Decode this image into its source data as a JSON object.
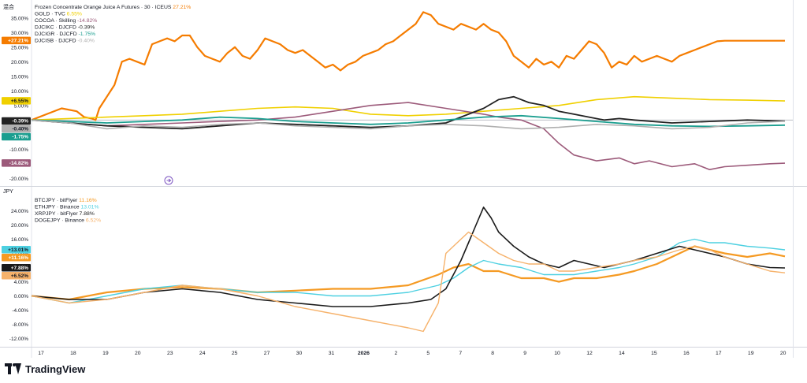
{
  "panel_label": "混合",
  "footer": {
    "brand": "TradingView"
  },
  "chart_data": [
    {
      "type": "line",
      "title": "Frozen Concentrate Orange Juice A Futures · 30 · ICEUS",
      "ylim": [
        -21,
        39
      ],
      "yticks": [
        35,
        30,
        25,
        20,
        15,
        10,
        5,
        0,
        -5,
        -10,
        -15,
        -20
      ],
      "ytick_labels": [
        "35.00%",
        "30.00%",
        "25.00%",
        "20.00%",
        "15.00%",
        "10.00%",
        "5.00%",
        "0.00%",
        "-5.00%",
        "-10.00%",
        "-15.00%",
        "-20.00%"
      ],
      "grid": false,
      "legend_position": "top-left",
      "series": [
        {
          "name": "Frozen Concentrate Orange Juice A Futures · 30 · ICEUS",
          "value_label": "27.21%",
          "badge": "+27.21%",
          "color": "#f57c00",
          "width": 2.2,
          "x": [
            0,
            2,
            4,
            6,
            7,
            8,
            8.5,
            9,
            10,
            11,
            12,
            13,
            14,
            15,
            16,
            17,
            18,
            19,
            20,
            21,
            22,
            23,
            24,
            25,
            26,
            27,
            28,
            29,
            30,
            31,
            32,
            33,
            34,
            35,
            36,
            37,
            38,
            39,
            40,
            41,
            42,
            43,
            44,
            45,
            46,
            47,
            48,
            49,
            50,
            51,
            52,
            53,
            54,
            55,
            56,
            57,
            58,
            59,
            60,
            61,
            62,
            63,
            64,
            65,
            66,
            67,
            68,
            69,
            70,
            71,
            72,
            73,
            74,
            75,
            76,
            77,
            78,
            79,
            80,
            81,
            82,
            83,
            84,
            85,
            86,
            87,
            88,
            89,
            90,
            91,
            92,
            93,
            94,
            95,
            96,
            97,
            98,
            99,
            100
          ],
          "y": [
            0,
            2,
            4,
            3,
            1,
            0.5,
            0,
            4,
            8,
            12,
            20,
            21,
            20,
            19,
            26,
            27,
            28,
            27,
            29,
            29,
            25,
            22,
            21,
            20,
            23,
            25,
            22,
            21,
            24,
            28,
            27,
            26,
            24,
            23,
            24,
            22,
            20,
            18,
            19,
            17,
            19,
            20,
            22,
            23,
            24,
            26,
            27,
            29,
            31,
            33,
            37,
            36,
            33,
            32,
            31,
            33,
            32,
            31,
            33,
            31,
            30,
            27,
            22,
            20,
            18,
            21,
            19,
            20,
            18,
            22,
            21,
            24,
            27,
            26,
            23,
            18,
            20,
            19,
            22,
            20,
            21,
            22,
            21,
            20,
            22,
            23,
            24,
            25,
            26,
            27,
            27.2,
            27.2,
            27.2,
            27.2,
            27.2,
            27.2,
            27.2,
            27.2,
            27.2
          ]
        },
        {
          "name": "GOLD · TVC",
          "value_label": "6.55%",
          "badge": "+6.55%",
          "color": "#f0d000",
          "width": 1.6,
          "x": [
            0,
            5,
            10,
            15,
            20,
            25,
            30,
            35,
            40,
            45,
            50,
            55,
            60,
            65,
            70,
            75,
            80,
            85,
            90,
            95,
            100
          ],
          "y": [
            0,
            0.5,
            1,
            1.5,
            2,
            3,
            4,
            4.5,
            4,
            2,
            1.5,
            2,
            3,
            4,
            5,
            7,
            8,
            7.5,
            7,
            6.8,
            6.55
          ]
        },
        {
          "name": "COCOA · Skilling",
          "value_label": "-14.82%",
          "badge": "-14.82%",
          "color": "#9c5a7a",
          "width": 1.6,
          "x": [
            0,
            5,
            10,
            15,
            20,
            25,
            30,
            35,
            40,
            45,
            50,
            55,
            60,
            62,
            65,
            68,
            70,
            72,
            75,
            78,
            80,
            82,
            85,
            88,
            90,
            92,
            95,
            98,
            100
          ],
          "y": [
            0,
            -1,
            -2,
            -1.5,
            -1,
            -0.5,
            0,
            1,
            3,
            5,
            6,
            4,
            2,
            1,
            0,
            -3,
            -8,
            -12,
            -14,
            -13,
            -15,
            -14,
            -16,
            -15,
            -17,
            -16,
            -15.5,
            -15,
            -14.82
          ]
        },
        {
          "name": "DJCIKC · DJCFD",
          "value_label": "-0.39%",
          "badge": "-0.39%",
          "color": "#222222",
          "width": 1.8,
          "x": [
            0,
            5,
            10,
            15,
            20,
            25,
            30,
            35,
            40,
            45,
            50,
            55,
            58,
            60,
            62,
            64,
            66,
            68,
            70,
            72,
            74,
            76,
            78,
            80,
            85,
            90,
            95,
            100
          ],
          "y": [
            0,
            -1,
            -2,
            -2.5,
            -3,
            -2,
            -1,
            -1.5,
            -2,
            -2.5,
            -2,
            -1,
            2,
            4,
            7,
            8,
            6,
            5,
            3,
            2,
            1,
            0,
            0.5,
            0,
            -1,
            -0.5,
            0,
            -0.39
          ]
        },
        {
          "name": "DJCIGR · DJCFD",
          "value_label": "-1.75%",
          "badge": "-1.75%",
          "color": "#1a9e8f",
          "width": 1.8,
          "x": [
            0,
            5,
            10,
            15,
            20,
            25,
            30,
            35,
            40,
            45,
            50,
            55,
            60,
            65,
            70,
            75,
            80,
            85,
            90,
            95,
            100
          ],
          "y": [
            0,
            -0.5,
            -1,
            -0.5,
            0,
            1,
            0.5,
            -0.5,
            -1,
            -1.5,
            -1,
            0,
            1,
            1.5,
            0.5,
            -0.5,
            -1.5,
            -2,
            -2.2,
            -2,
            -1.75
          ]
        },
        {
          "name": "DJCISB · DJCFD",
          "value_label": "-0.40%",
          "badge": "-0.40%",
          "color": "#b0b0b0",
          "width": 1.6,
          "x": [
            0,
            5,
            10,
            15,
            20,
            25,
            30,
            35,
            40,
            45,
            50,
            55,
            60,
            65,
            70,
            75,
            80,
            85,
            90,
            95,
            100
          ],
          "y": [
            0,
            -1,
            -3,
            -2,
            -2.5,
            -1.5,
            -1,
            -2,
            -2.5,
            -3,
            -2,
            -1.5,
            -2,
            -3,
            -2.5,
            -1.5,
            -2,
            -3,
            -2.5,
            -1,
            -0.4
          ]
        }
      ]
    },
    {
      "type": "line",
      "title": "JPY",
      "ylim": [
        -13,
        27
      ],
      "yticks": [
        24,
        20,
        16,
        12,
        8,
        4,
        0,
        -4,
        -8,
        -12
      ],
      "ytick_labels": [
        "24.00%",
        "20.00%",
        "16.00%",
        "12.00%",
        "8.00%",
        "4.00%",
        "0.00%",
        "-4.00%",
        "-8.00%",
        "-12.00%"
      ],
      "x_tick_labels": [
        "17",
        "18",
        "19",
        "20",
        "23",
        "24",
        "25",
        "27",
        "30",
        "31",
        "2026",
        "2",
        "5",
        "7",
        "8",
        "9",
        "10",
        "12",
        "14",
        "15",
        "16",
        "17",
        "19",
        "20"
      ],
      "grid": false,
      "legend_position": "top-left",
      "series": [
        {
          "name": "BTCJPY · bitFlyer",
          "value_label": "11.16%",
          "badge": "+11.16%",
          "color": "#f59a23",
          "width": 2.2,
          "x": [
            0,
            5,
            10,
            15,
            20,
            25,
            30,
            35,
            40,
            45,
            50,
            54,
            56,
            58,
            60,
            62,
            65,
            68,
            70,
            72,
            75,
            78,
            80,
            83,
            86,
            88,
            90,
            92,
            95,
            98,
            100
          ],
          "y": [
            0,
            -1,
            1,
            2,
            2.5,
            2,
            1,
            1.5,
            2,
            2,
            3,
            6,
            8,
            9,
            7,
            7,
            5,
            5,
            4,
            5,
            5,
            6,
            7,
            9,
            12,
            14,
            13,
            12,
            11,
            12,
            11.16
          ]
        },
        {
          "name": "ETHJPY · Binance",
          "value_label": "13.01%",
          "badge": "+13.01%",
          "color": "#4dd0e1",
          "width": 1.4,
          "x": [
            0,
            5,
            10,
            15,
            20,
            25,
            30,
            35,
            40,
            45,
            50,
            54,
            56,
            58,
            60,
            62,
            65,
            68,
            70,
            72,
            75,
            78,
            80,
            83,
            86,
            88,
            90,
            92,
            95,
            98,
            100
          ],
          "y": [
            0,
            -2,
            0,
            2,
            3,
            2,
            1,
            1,
            0,
            0,
            1,
            3,
            5,
            8,
            10,
            9,
            8,
            6,
            6,
            6,
            7,
            8,
            9,
            11,
            15,
            16,
            15,
            15,
            14,
            13.5,
            13.01
          ]
        },
        {
          "name": "XRPJPY · bitFlyer",
          "value_label": "7.88%",
          "badge": "+7.88%",
          "color": "#1a1a1a",
          "width": 1.6,
          "x": [
            0,
            5,
            10,
            15,
            20,
            25,
            30,
            35,
            40,
            45,
            50,
            53,
            55,
            57,
            58,
            59,
            60,
            61,
            62,
            64,
            66,
            68,
            70,
            72,
            74,
            76,
            78,
            80,
            83,
            86,
            88,
            90,
            92,
            95,
            98,
            100
          ],
          "y": [
            0,
            -1,
            -1,
            1,
            2,
            1,
            -1,
            -2,
            -3,
            -3,
            -2,
            -1,
            2,
            10,
            15,
            20,
            25,
            22,
            18,
            14,
            11,
            9,
            8,
            10,
            9,
            8,
            9,
            10,
            12,
            14,
            13,
            12,
            11,
            9,
            8,
            7.88
          ]
        },
        {
          "name": "DOGEJPY · Binance",
          "value_label": "6.52%",
          "badge": "+6.52%",
          "color": "#f6b26b",
          "width": 1.4,
          "x": [
            0,
            5,
            10,
            15,
            20,
            25,
            30,
            35,
            40,
            45,
            50,
            52,
            54,
            55,
            57,
            58,
            60,
            62,
            64,
            66,
            68,
            70,
            72,
            75,
            78,
            80,
            83,
            86,
            88,
            90,
            92,
            95,
            98,
            100
          ],
          "y": [
            0,
            -2,
            -1,
            1,
            3,
            2,
            0,
            -3,
            -5,
            -7,
            -9,
            -10,
            -2,
            12,
            16,
            18,
            15,
            12,
            10,
            9,
            9,
            7,
            7,
            8,
            9,
            10,
            11,
            13,
            14,
            13,
            11,
            9,
            7,
            6.52
          ]
        }
      ]
    }
  ]
}
